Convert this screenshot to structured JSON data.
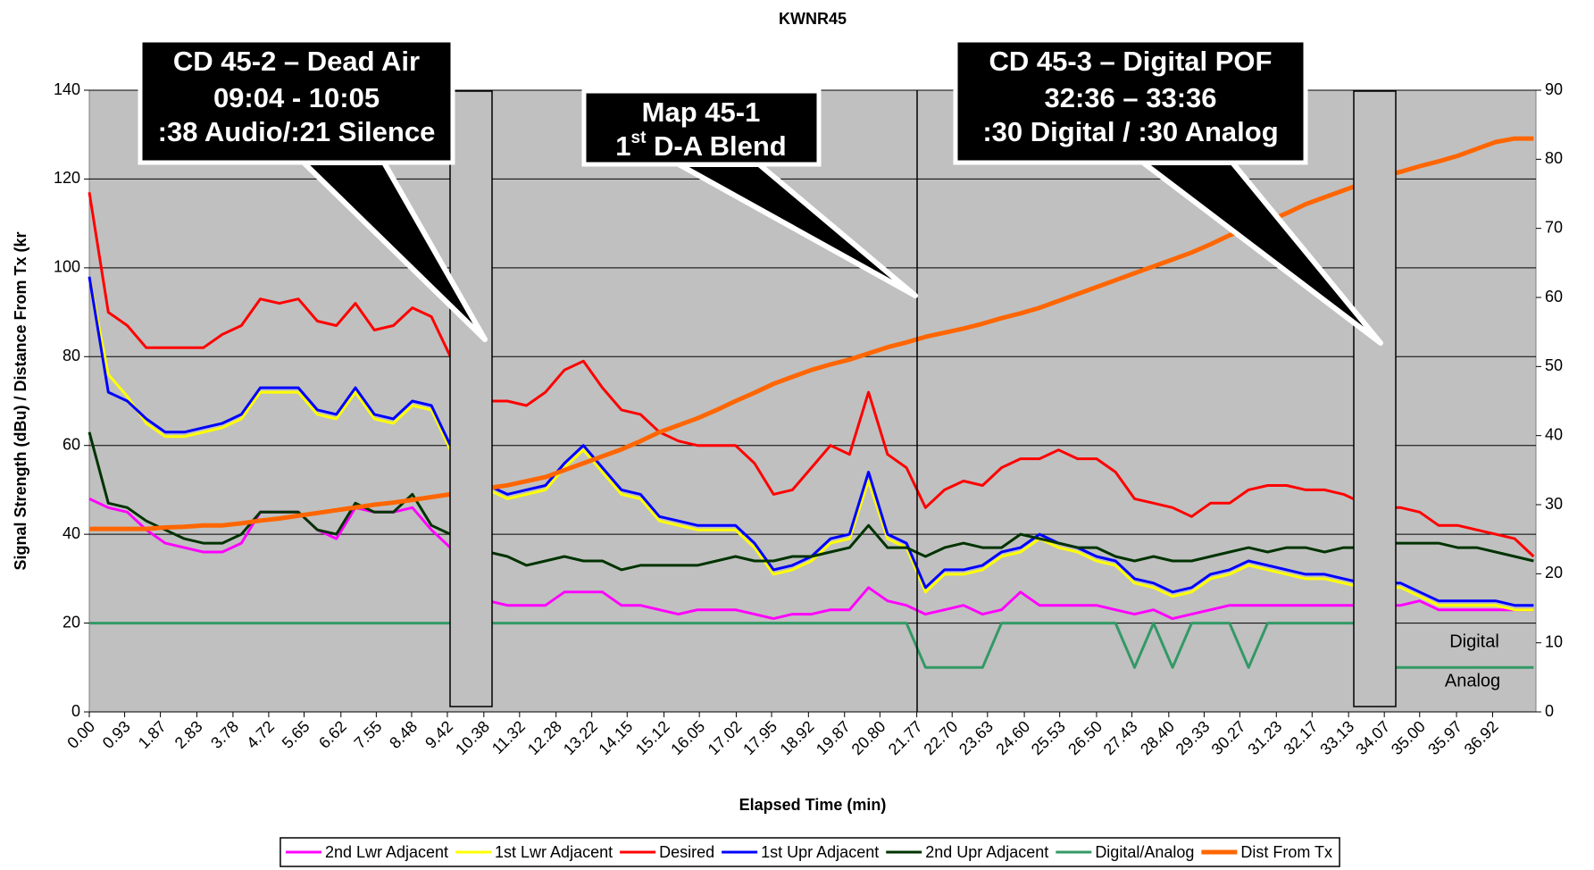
{
  "chart_data": {
    "type": "line",
    "title": "KWNR45",
    "x_label": "Elapsed Time (min)",
    "y_label": "Signal Strength (dBu) / Distance From Tx (kr",
    "x": [
      0,
      0.5,
      1,
      1.5,
      2,
      2.5,
      3,
      3.5,
      4,
      4.5,
      5,
      5.5,
      6,
      6.5,
      7,
      7.5,
      8,
      8.5,
      9,
      9.5,
      10,
      10.5,
      11,
      11.5,
      12,
      12.5,
      13,
      13.5,
      14,
      14.5,
      15,
      15.5,
      16,
      16.5,
      17,
      17.5,
      18,
      18.5,
      19,
      19.5,
      20,
      20.5,
      21,
      21.5,
      22,
      22.5,
      23,
      23.5,
      24,
      24.5,
      25,
      25.5,
      26,
      26.5,
      27,
      27.5,
      28,
      28.5,
      29,
      29.5,
      30,
      30.5,
      31,
      31.5,
      32,
      32.5,
      33,
      33.5,
      34,
      34.5,
      35,
      35.5,
      36,
      36.5,
      37,
      37.5,
      38
    ],
    "xlim": [
      0,
      38.06
    ],
    "xticks": [
      {
        "value": 0,
        "label": "0.00"
      },
      0.93,
      1.87,
      2.83,
      3.78,
      4.72,
      5.65,
      6.62,
      7.55,
      8.48,
      9.42,
      10.38,
      11.32,
      12.28,
      13.22,
      14.15,
      15.12,
      16.05,
      17.02,
      17.95,
      18.92,
      19.87,
      {
        "value": 20.8,
        "label": "20.80"
      },
      21.77,
      {
        "value": 22.7,
        "label": "22.70"
      },
      23.63,
      {
        "value": 24.6,
        "label": "24.60"
      },
      25.53,
      {
        "value": 26.5,
        "label": "26.50"
      },
      27.43,
      {
        "value": 28.4,
        "label": "28.40"
      },
      29.33,
      30.27,
      31.23,
      32.17,
      33.13,
      34.07,
      {
        "value": 35,
        "label": "35.00"
      },
      35.97,
      36.92
    ],
    "ylim": [
      0,
      140
    ],
    "yticks": [
      0,
      20,
      40,
      60,
      80,
      100,
      120,
      140
    ],
    "y2lim": [
      0,
      90
    ],
    "y2ticks": [
      0,
      10,
      20,
      30,
      40,
      50,
      60,
      70,
      80,
      90
    ],
    "grid": true,
    "legend": "bottom",
    "series": [
      {
        "name": "2nd Lwr Adjacent",
        "color": "#ff00ff",
        "values": [
          48,
          46,
          45,
          41,
          38,
          37,
          36,
          36,
          38,
          45,
          45,
          45,
          41,
          39,
          46,
          45,
          45,
          46,
          41,
          37,
          30,
          25,
          24,
          24,
          24,
          27,
          27,
          27,
          24,
          24,
          23,
          22,
          23,
          23,
          23,
          22,
          21,
          22,
          22,
          23,
          23,
          28,
          25,
          24,
          22,
          23,
          24,
          22,
          23,
          27,
          24,
          24,
          24,
          24,
          23,
          22,
          23,
          21,
          22,
          23,
          24,
          24,
          24,
          24,
          24,
          24,
          24,
          24,
          24,
          24,
          25,
          23,
          23,
          23,
          23,
          23,
          23
        ]
      },
      {
        "name": "1st Lwr Adjacent",
        "color": "#ffff00",
        "values": [
          98,
          76,
          71,
          65,
          62,
          62,
          63,
          64,
          66,
          72,
          72,
          72,
          67,
          66,
          72,
          66,
          65,
          69,
          68,
          59,
          54,
          50,
          48,
          49,
          50,
          55,
          59,
          54,
          49,
          48,
          43,
          42,
          41,
          41,
          41,
          37,
          31,
          32,
          34,
          38,
          39,
          52,
          39,
          37,
          27,
          31,
          31,
          32,
          35,
          36,
          39,
          37,
          36,
          34,
          33,
          29,
          28,
          26,
          27,
          30,
          31,
          33,
          32,
          31,
          30,
          30,
          29,
          28,
          28,
          28,
          26,
          24,
          24,
          24,
          24,
          23,
          23
        ]
      },
      {
        "name": "Desired",
        "color": "#ff0000",
        "values": [
          117,
          90,
          87,
          82,
          82,
          82,
          82,
          85,
          87,
          93,
          92,
          93,
          88,
          87,
          92,
          86,
          87,
          91,
          89,
          80,
          75,
          70,
          70,
          69,
          72,
          77,
          79,
          73,
          68,
          67,
          63,
          61,
          60,
          60,
          60,
          56,
          49,
          50,
          55,
          60,
          58,
          72,
          58,
          55,
          46,
          50,
          52,
          51,
          55,
          57,
          57,
          59,
          57,
          57,
          54,
          48,
          47,
          46,
          44,
          47,
          47,
          50,
          51,
          51,
          50,
          50,
          49,
          47,
          46,
          46,
          45,
          42,
          42,
          41,
          40,
          39,
          35
        ]
      },
      {
        "name": "1st Upr Adjacent",
        "color": "#0000ff",
        "values": [
          98,
          72,
          70,
          66,
          63,
          63,
          64,
          65,
          67,
          73,
          73,
          73,
          68,
          67,
          73,
          67,
          66,
          70,
          69,
          60,
          55,
          51,
          49,
          50,
          51,
          56,
          60,
          55,
          50,
          49,
          44,
          43,
          42,
          42,
          42,
          38,
          32,
          33,
          35,
          39,
          40,
          54,
          40,
          38,
          28,
          32,
          32,
          33,
          36,
          37,
          40,
          38,
          37,
          35,
          34,
          30,
          29,
          27,
          28,
          31,
          32,
          34,
          33,
          32,
          31,
          31,
          30,
          29,
          29,
          29,
          27,
          25,
          25,
          25,
          25,
          24,
          24
        ]
      },
      {
        "name": "2nd Upr Adjacent",
        "color": "#003300",
        "values": [
          63,
          47,
          46,
          43,
          41,
          39,
          38,
          38,
          40,
          45,
          45,
          45,
          41,
          40,
          47,
          45,
          45,
          49,
          42,
          40,
          38,
          36,
          35,
          33,
          34,
          35,
          34,
          34,
          32,
          33,
          33,
          33,
          33,
          34,
          35,
          34,
          34,
          35,
          35,
          36,
          37,
          42,
          37,
          37,
          35,
          37,
          38,
          37,
          37,
          40,
          39,
          38,
          37,
          37,
          35,
          34,
          35,
          34,
          34,
          35,
          36,
          37,
          36,
          37,
          37,
          36,
          37,
          37,
          38,
          38,
          38,
          38,
          37,
          37,
          36,
          35,
          34
        ]
      },
      {
        "name": "Digital/Analog",
        "color": "#339966",
        "values": [
          20,
          20,
          20,
          20,
          20,
          20,
          20,
          20,
          20,
          20,
          20,
          20,
          20,
          20,
          20,
          20,
          20,
          20,
          20,
          20,
          20,
          20,
          20,
          20,
          20,
          20,
          20,
          20,
          20,
          20,
          20,
          20,
          20,
          20,
          20,
          20,
          20,
          20,
          20,
          20,
          20,
          20,
          20,
          20,
          10,
          10,
          10,
          10,
          20,
          20,
          20,
          20,
          20,
          20,
          20,
          10,
          20,
          10,
          20,
          20,
          20,
          10,
          20,
          20,
          20,
          20,
          20,
          20,
          10,
          10,
          10,
          10,
          10,
          10,
          10,
          10,
          10
        ]
      },
      {
        "name": "Dist From Tx",
        "color": "#ff6600",
        "axis": "y2",
        "values": [
          26.5,
          26.5,
          26.5,
          26.5,
          26.7,
          26.8,
          27,
          27,
          27.3,
          27.7,
          28,
          28.4,
          28.8,
          29.2,
          29.6,
          30,
          30.3,
          30.7,
          31.1,
          31.5,
          32,
          32.4,
          32.8,
          33.4,
          34,
          35,
          36,
          37,
          38,
          39.2,
          40.5,
          41.5,
          42.5,
          43.7,
          45,
          46.2,
          47.5,
          48.5,
          49.5,
          50.3,
          51,
          51.9,
          52.8,
          53.5,
          54.3,
          54.9,
          55.5,
          56.2,
          57,
          57.7,
          58.5,
          59.5,
          60.5,
          61.5,
          62.5,
          63.5,
          64.5,
          65.5,
          66.5,
          67.7,
          69,
          70,
          71,
          72.2,
          73.5,
          74.5,
          75.5,
          76.5,
          77.5,
          78.2,
          79,
          79.7,
          80.5,
          81.5,
          82.5,
          83,
          83
        ]
      }
    ],
    "region_labels": [
      "Digital",
      "Analog"
    ],
    "annotations": [
      {
        "lines": [
          "CD 45-2 – Dead Air",
          "09:04 - 10:05",
          ":38 Audio/:21 Silence"
        ]
      },
      {
        "lines": [
          "Map 45-1"
        ],
        "blend": [
          "1",
          "st",
          " D-A Blend"
        ]
      },
      {
        "lines": [
          "CD 45-3 – Digital POF",
          "32:36 – 33:36",
          ":30 Digital / :30 Analog"
        ]
      }
    ]
  }
}
